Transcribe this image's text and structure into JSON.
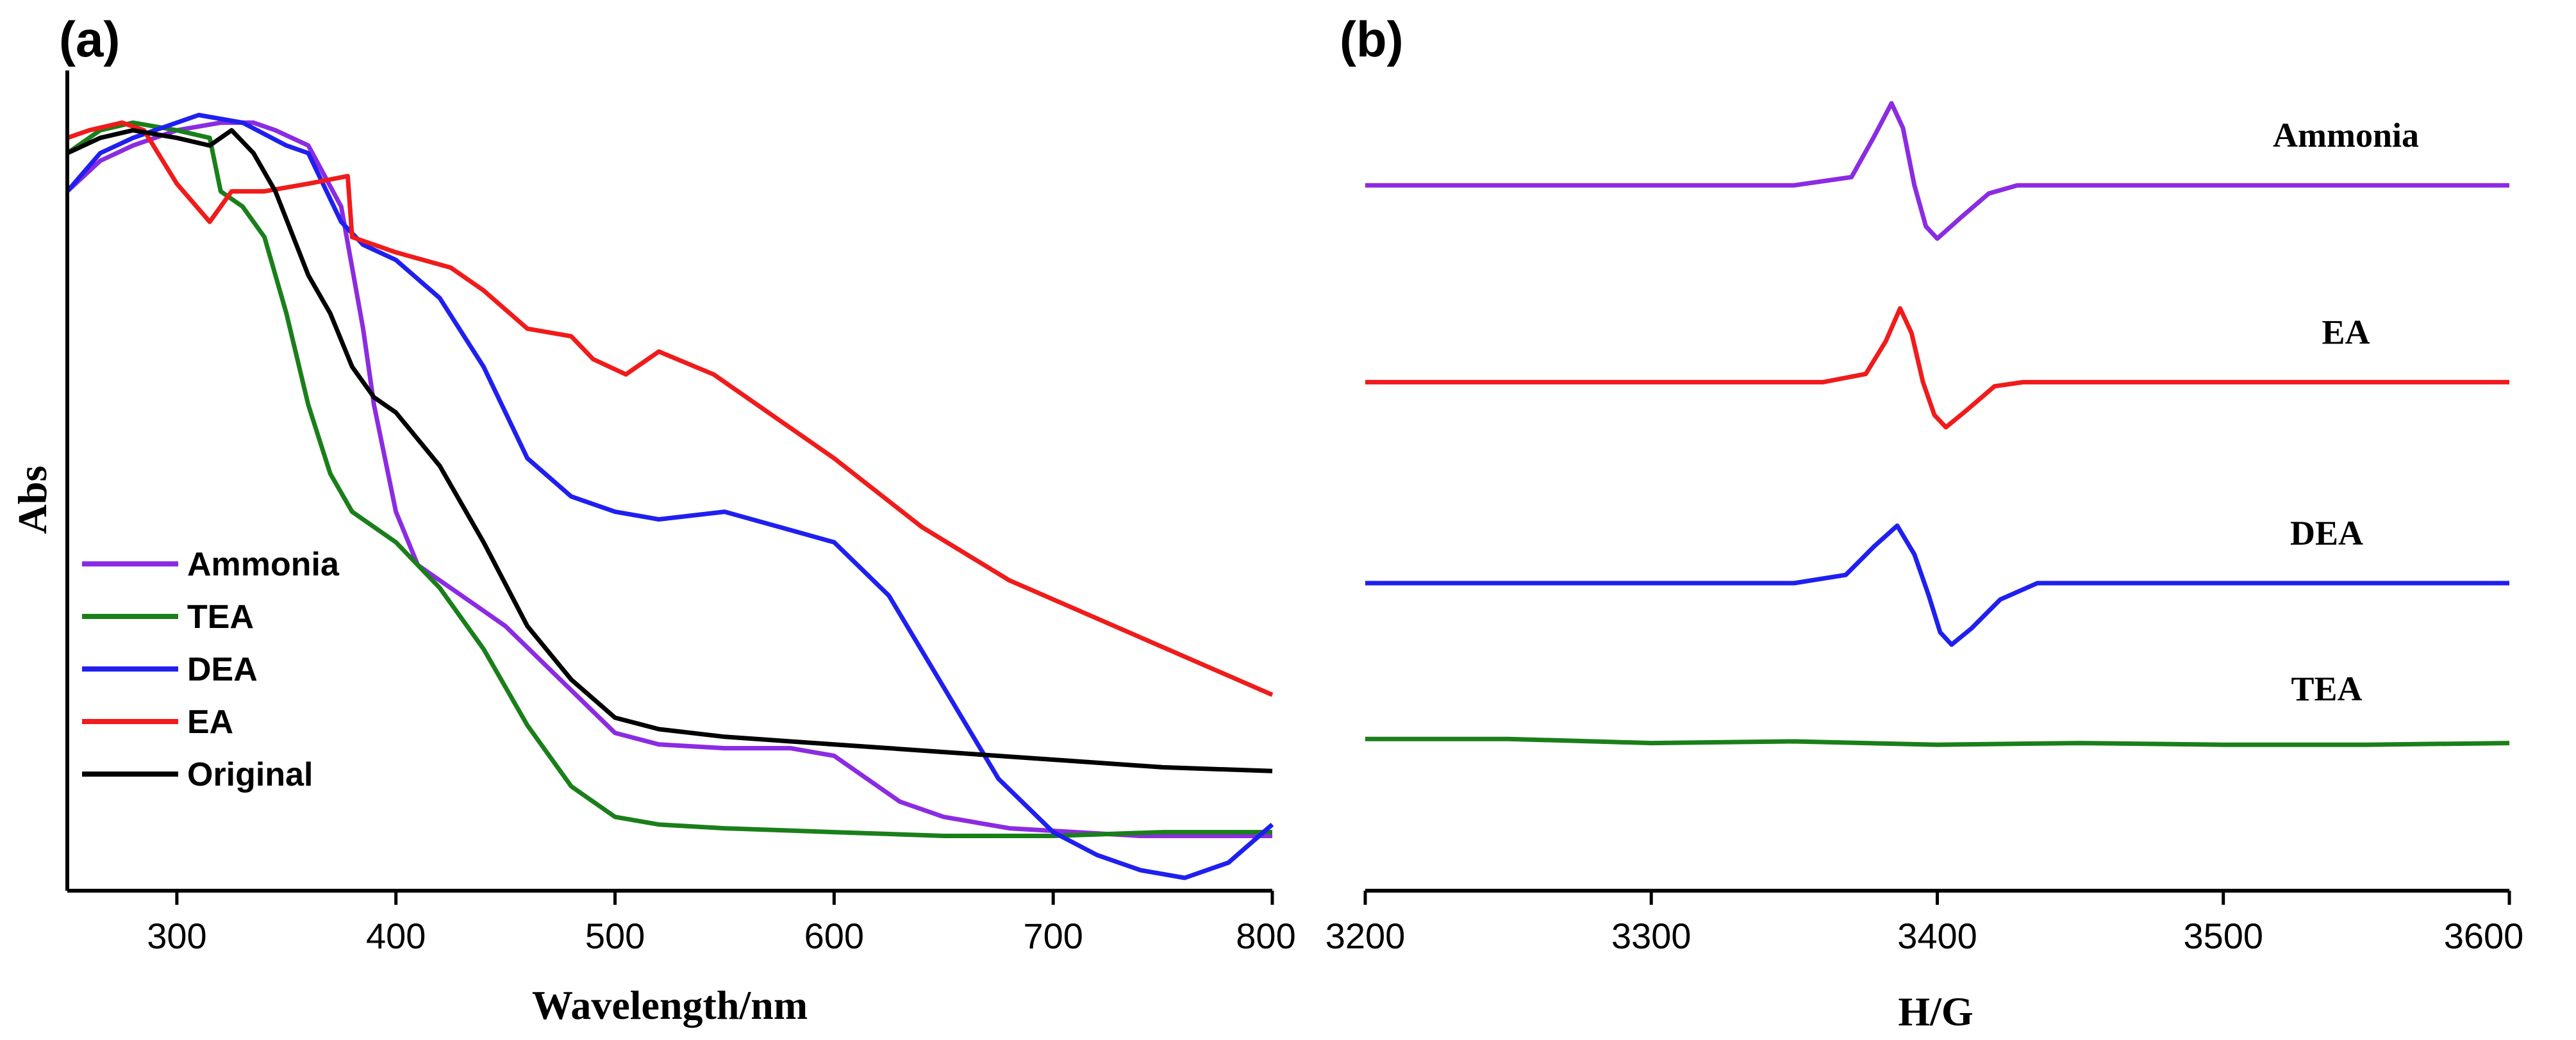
{
  "chart_data": [
    {
      "panel": "(a)",
      "type": "line",
      "xlabel": "Wavelength/nm",
      "ylabel": "Abs",
      "xlim": [
        250,
        800
      ],
      "ylim": [
        0,
        1.05
      ],
      "x_ticks": [
        "300",
        "400",
        "500",
        "600",
        "700",
        "800"
      ],
      "y_ticks_shown": false,
      "legend": "bottom-left",
      "series": [
        {
          "name": "Ammonia",
          "color": "#8b2be2",
          "x": [
            250,
            265,
            280,
            300,
            320,
            335,
            345,
            360,
            375,
            385,
            390,
            400,
            410,
            420,
            435,
            450,
            475,
            500,
            520,
            550,
            580,
            600,
            615,
            630,
            650,
            680,
            710,
            740,
            770,
            800
          ],
          "y": [
            0.9,
            0.94,
            0.96,
            0.98,
            0.99,
            0.99,
            0.98,
            0.96,
            0.88,
            0.72,
            0.62,
            0.48,
            0.41,
            0.39,
            0.36,
            0.33,
            0.26,
            0.19,
            0.175,
            0.17,
            0.17,
            0.16,
            0.13,
            0.1,
            0.08,
            0.065,
            0.06,
            0.055,
            0.055,
            0.055
          ]
        },
        {
          "name": "TEA",
          "color": "#1a7f1a",
          "x": [
            250,
            265,
            280,
            300,
            315,
            320,
            330,
            340,
            350,
            360,
            370,
            380,
            400,
            420,
            440,
            460,
            480,
            500,
            520,
            550,
            600,
            650,
            700,
            750,
            800
          ],
          "y": [
            0.95,
            0.98,
            0.99,
            0.98,
            0.97,
            0.9,
            0.88,
            0.84,
            0.74,
            0.62,
            0.53,
            0.48,
            0.44,
            0.38,
            0.3,
            0.2,
            0.12,
            0.08,
            0.07,
            0.065,
            0.06,
            0.055,
            0.055,
            0.06,
            0.06
          ]
        },
        {
          "name": "DEA",
          "color": "#1f1ff0",
          "x": [
            250,
            265,
            280,
            300,
            310,
            330,
            350,
            360,
            375,
            385,
            400,
            420,
            440,
            460,
            480,
            500,
            520,
            550,
            575,
            600,
            625,
            650,
            675,
            700,
            720,
            740,
            760,
            780,
            800
          ],
          "y": [
            0.9,
            0.95,
            0.97,
            0.99,
            1.0,
            0.99,
            0.96,
            0.95,
            0.86,
            0.83,
            0.81,
            0.76,
            0.67,
            0.55,
            0.5,
            0.48,
            0.47,
            0.48,
            0.46,
            0.44,
            0.37,
            0.25,
            0.13,
            0.06,
            0.03,
            0.01,
            0.0,
            0.02,
            0.07
          ]
        },
        {
          "name": "EA",
          "color": "#f01b1b",
          "x": [
            250,
            260,
            275,
            285,
            300,
            315,
            325,
            340,
            360,
            378,
            380,
            400,
            425,
            440,
            460,
            480,
            490,
            505,
            520,
            545,
            575,
            600,
            640,
            680,
            720,
            760,
            800
          ],
          "y": [
            0.97,
            0.98,
            0.99,
            0.98,
            0.91,
            0.86,
            0.9,
            0.9,
            0.91,
            0.92,
            0.84,
            0.82,
            0.8,
            0.77,
            0.72,
            0.71,
            0.68,
            0.66,
            0.69,
            0.66,
            0.6,
            0.55,
            0.46,
            0.39,
            0.34,
            0.29,
            0.24
          ]
        },
        {
          "name": "Original",
          "color": "#000000",
          "x": [
            250,
            265,
            280,
            300,
            315,
            325,
            335,
            345,
            360,
            370,
            380,
            390,
            400,
            420,
            440,
            460,
            480,
            500,
            520,
            550,
            600,
            650,
            700,
            750,
            800
          ],
          "y": [
            0.95,
            0.97,
            0.98,
            0.97,
            0.96,
            0.98,
            0.95,
            0.9,
            0.79,
            0.74,
            0.67,
            0.63,
            0.61,
            0.54,
            0.44,
            0.33,
            0.26,
            0.21,
            0.195,
            0.185,
            0.175,
            0.165,
            0.155,
            0.145,
            0.14
          ]
        }
      ]
    },
    {
      "panel": "(b)",
      "type": "line",
      "xlabel": "H/G",
      "ylabel": "",
      "xlim": [
        3200,
        3600
      ],
      "ylim": [
        0,
        10
      ],
      "x_ticks": [
        "3200",
        "3300",
        "3400",
        "3500",
        "3600"
      ],
      "y_ticks_shown": false,
      "series": [
        {
          "name": "Ammonia",
          "color": "#8b2be2",
          "x": [
            3200,
            3350,
            3370,
            3378,
            3384,
            3388,
            3392,
            3396,
            3400,
            3408,
            3418,
            3428,
            3600
          ],
          "y": [
            8.6,
            8.6,
            8.7,
            9.2,
            9.6,
            9.3,
            8.6,
            8.1,
            7.95,
            8.2,
            8.5,
            8.6,
            8.6
          ]
        },
        {
          "name": "EA",
          "color": "#f01b1b",
          "x": [
            3200,
            3360,
            3375,
            3382,
            3387,
            3391,
            3395,
            3399,
            3403,
            3410,
            3420,
            3430,
            3600
          ],
          "y": [
            6.2,
            6.2,
            6.3,
            6.7,
            7.1,
            6.8,
            6.2,
            5.8,
            5.65,
            5.85,
            6.15,
            6.2,
            6.2
          ]
        },
        {
          "name": "DEA",
          "color": "#1f1ff0",
          "x": [
            3200,
            3350,
            3368,
            3378,
            3386,
            3392,
            3397,
            3401,
            3405,
            3412,
            3422,
            3435,
            3600
          ],
          "y": [
            3.75,
            3.75,
            3.85,
            4.2,
            4.45,
            4.1,
            3.6,
            3.15,
            3.0,
            3.2,
            3.55,
            3.75,
            3.75
          ]
        },
        {
          "name": "TEA",
          "color": "#1a7f1a",
          "x": [
            3200,
            3250,
            3300,
            3350,
            3400,
            3450,
            3500,
            3550,
            3600
          ],
          "y": [
            1.85,
            1.85,
            1.8,
            1.82,
            1.78,
            1.8,
            1.78,
            1.78,
            1.8
          ]
        }
      ]
    }
  ],
  "legend_a": [
    "Ammonia",
    "TEA",
    "DEA",
    "EA",
    "Original"
  ]
}
